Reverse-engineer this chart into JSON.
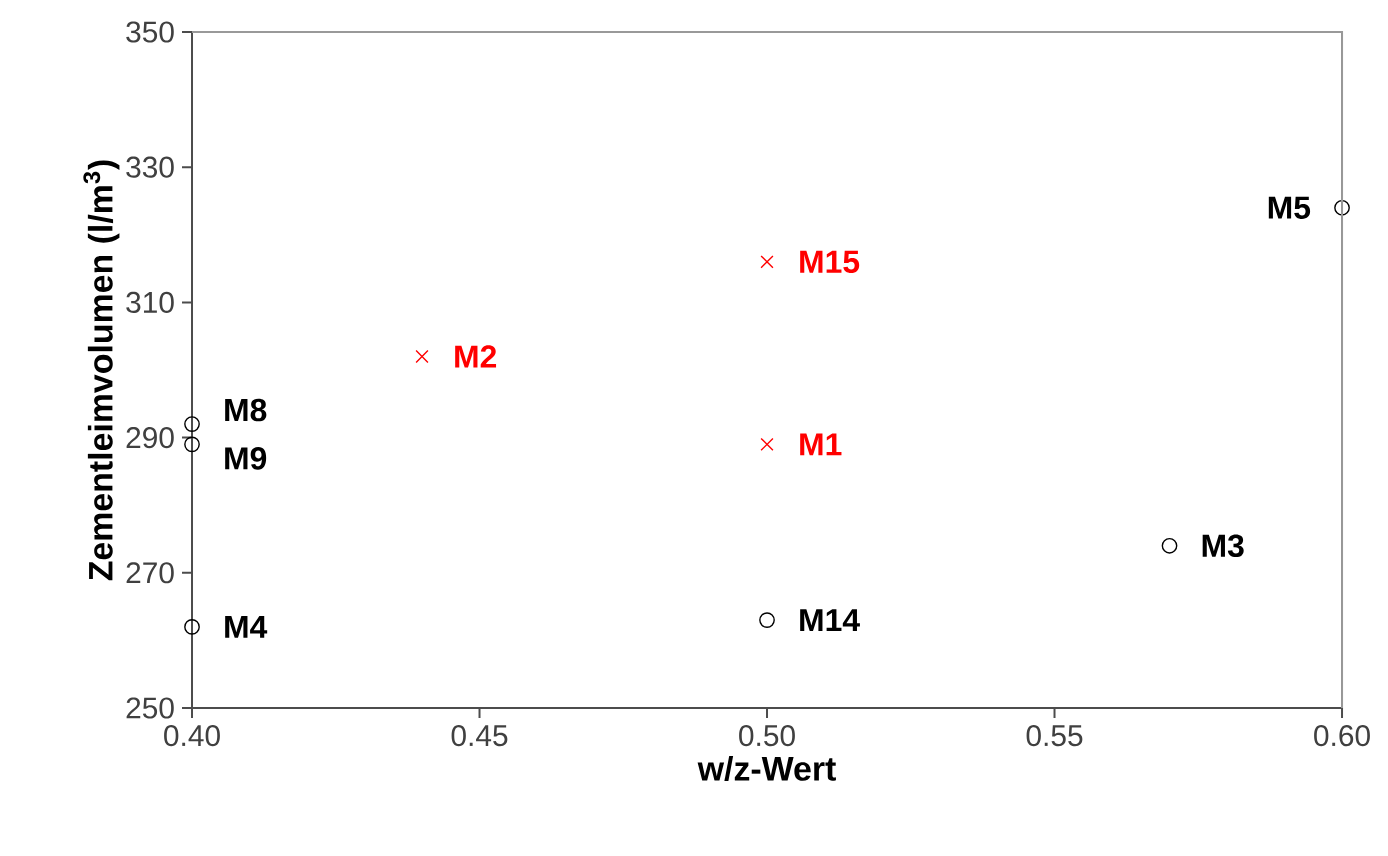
{
  "chart_data": {
    "type": "scatter",
    "xlabel": "w/z-Wert",
    "ylabel": "Zementleimvolumen (l/m$^{3}$)",
    "xlim": [
      0.4,
      0.6
    ],
    "ylim": [
      250,
      350
    ],
    "xticks": [
      {
        "value": 0.4,
        "label": "0.40"
      },
      {
        "value": 0.45,
        "label": "0.45"
      },
      {
        "value": 0.5,
        "label": "0.50"
      },
      {
        "value": 0.55,
        "label": "0.55"
      },
      {
        "value": 0.6,
        "label": "0.60"
      }
    ],
    "yticks": [
      250,
      270,
      290,
      310,
      330,
      350
    ],
    "grid": false,
    "series": [
      {
        "color": "#000000",
        "marker": "circle",
        "x": [
          0.4,
          0.4,
          0.4,
          0.5,
          0.57,
          0.6
        ],
        "values": [
          292,
          289,
          262,
          263,
          274,
          324
        ]
      },
      {
        "color": "#ff0000",
        "marker": "cross",
        "x": [
          0.44,
          0.5,
          0.5
        ],
        "values": [
          302,
          316,
          289
        ]
      }
    ],
    "annotations": [
      {
        "text": "M8",
        "x": 0.4,
        "y": 292
      },
      {
        "text": "M9",
        "x": 0.4,
        "y": 289
      },
      {
        "text": "M4",
        "x": 0.4,
        "y": 262
      },
      {
        "text": "M2",
        "x": 0.44,
        "y": 302
      },
      {
        "text": "M15",
        "x": 0.5,
        "y": 316
      },
      {
        "text": "M1",
        "x": 0.5,
        "y": 289
      },
      {
        "text": "M14",
        "x": 0.5,
        "y": 263
      },
      {
        "text": "M3",
        "x": 0.57,
        "y": 274
      },
      {
        "text": "M5",
        "x": 0.6,
        "y": 324
      }
    ]
  }
}
